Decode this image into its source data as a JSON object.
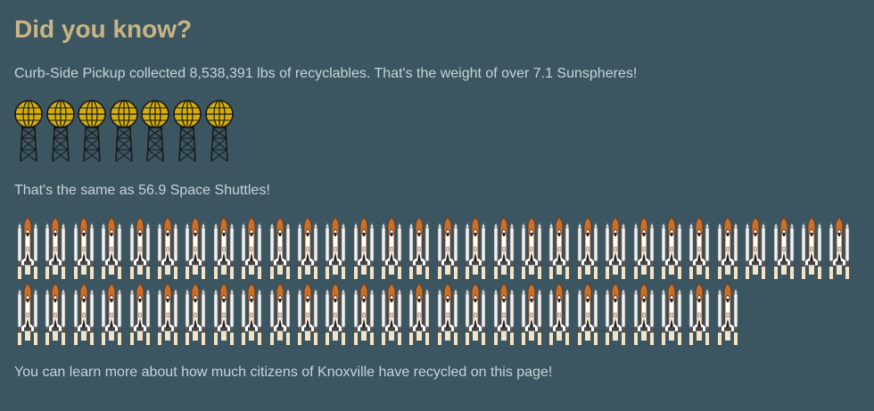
{
  "heading": "Did you know?",
  "curbside_text": "Curb-Side Pickup collected 8,538,391 lbs of recyclables. That's the weight of over 7.1 Sunspheres!",
  "sunspheres": {
    "count": 7,
    "icon": "sunsphere-icon"
  },
  "shuttle_text": "That's the same as 56.9 Space Shuttles!",
  "shuttles": {
    "row_a": 30,
    "row_b": 26,
    "icon": "space-shuttle-icon"
  },
  "footer_text": "You can learn more about how much citizens of Knoxville have recycled on this page!",
  "colors": {
    "background": "#3b5661",
    "heading": "#c9b584",
    "text": "#c7d4d8",
    "sphere_gold": "#d4af0c",
    "shuttle_tank": "#c96f2c"
  }
}
